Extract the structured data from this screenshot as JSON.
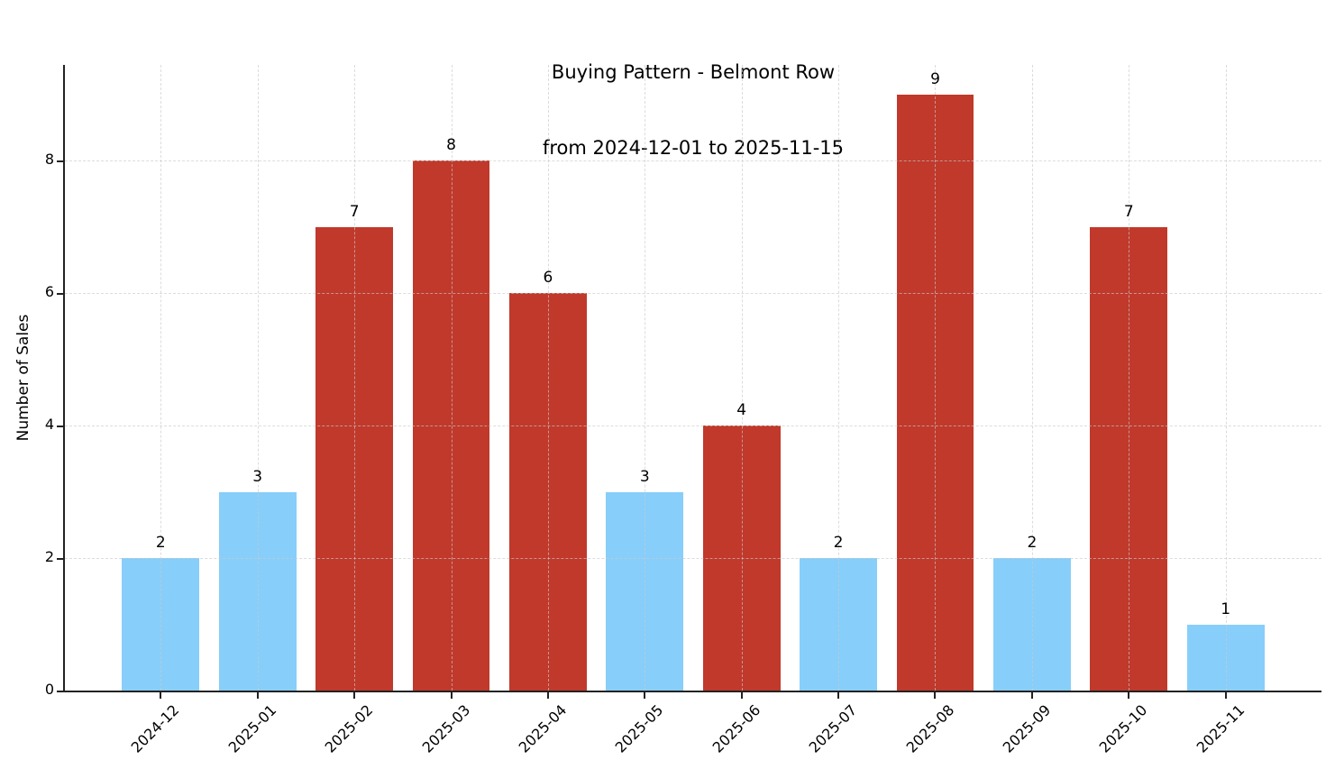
{
  "chart_data": {
    "type": "bar",
    "title": "Buying Pattern - Belmont Row",
    "subtitle": "from 2024-12-01 to 2025-11-15",
    "xlabel": "",
    "ylabel": "Number of Sales",
    "categories": [
      "2024-12",
      "2025-01",
      "2025-02",
      "2025-03",
      "2025-04",
      "2025-05",
      "2025-06",
      "2025-07",
      "2025-08",
      "2025-09",
      "2025-10",
      "2025-11"
    ],
    "values": [
      2,
      3,
      7,
      8,
      6,
      3,
      4,
      2,
      9,
      2,
      7,
      1
    ],
    "value_labels": [
      "2",
      "3",
      "7",
      "8",
      "6",
      "3",
      "4",
      "2",
      "9",
      "2",
      "7",
      "1"
    ],
    "bar_colors": [
      "#87CEFA",
      "#87CEFA",
      "#C0392B",
      "#C0392B",
      "#C0392B",
      "#87CEFA",
      "#C0392B",
      "#87CEFA",
      "#C0392B",
      "#87CEFA",
      "#C0392B",
      "#87CEFA"
    ],
    "yticks": [
      0,
      2,
      4,
      6,
      8
    ],
    "ylim": [
      0,
      9.45
    ],
    "grid": true,
    "grid_style": "dashed",
    "grid_axes": "both",
    "legend": "none",
    "colors": {
      "low_bar": "#87CEFA",
      "high_bar": "#C0392B",
      "axis": "#222222",
      "grid": "#c9c9c9",
      "text": "#000000",
      "background": "#ffffff"
    }
  }
}
